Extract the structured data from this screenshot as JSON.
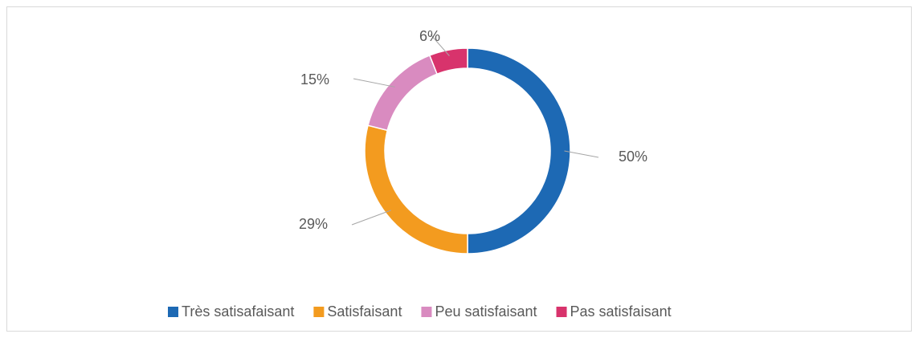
{
  "chart_data": {
    "type": "donut",
    "categories": [
      "Très satisafaisant",
      "Satisfaisant",
      "Peu satisfaisant",
      "Pas satisfaisant"
    ],
    "values": [
      50,
      29,
      15,
      6
    ],
    "value_labels": [
      "50%",
      "29%",
      "15%",
      "6%"
    ],
    "colors": [
      "#1d69b4",
      "#f39b1f",
      "#d98bc0",
      "#d8336c"
    ],
    "legend": "bottom"
  }
}
